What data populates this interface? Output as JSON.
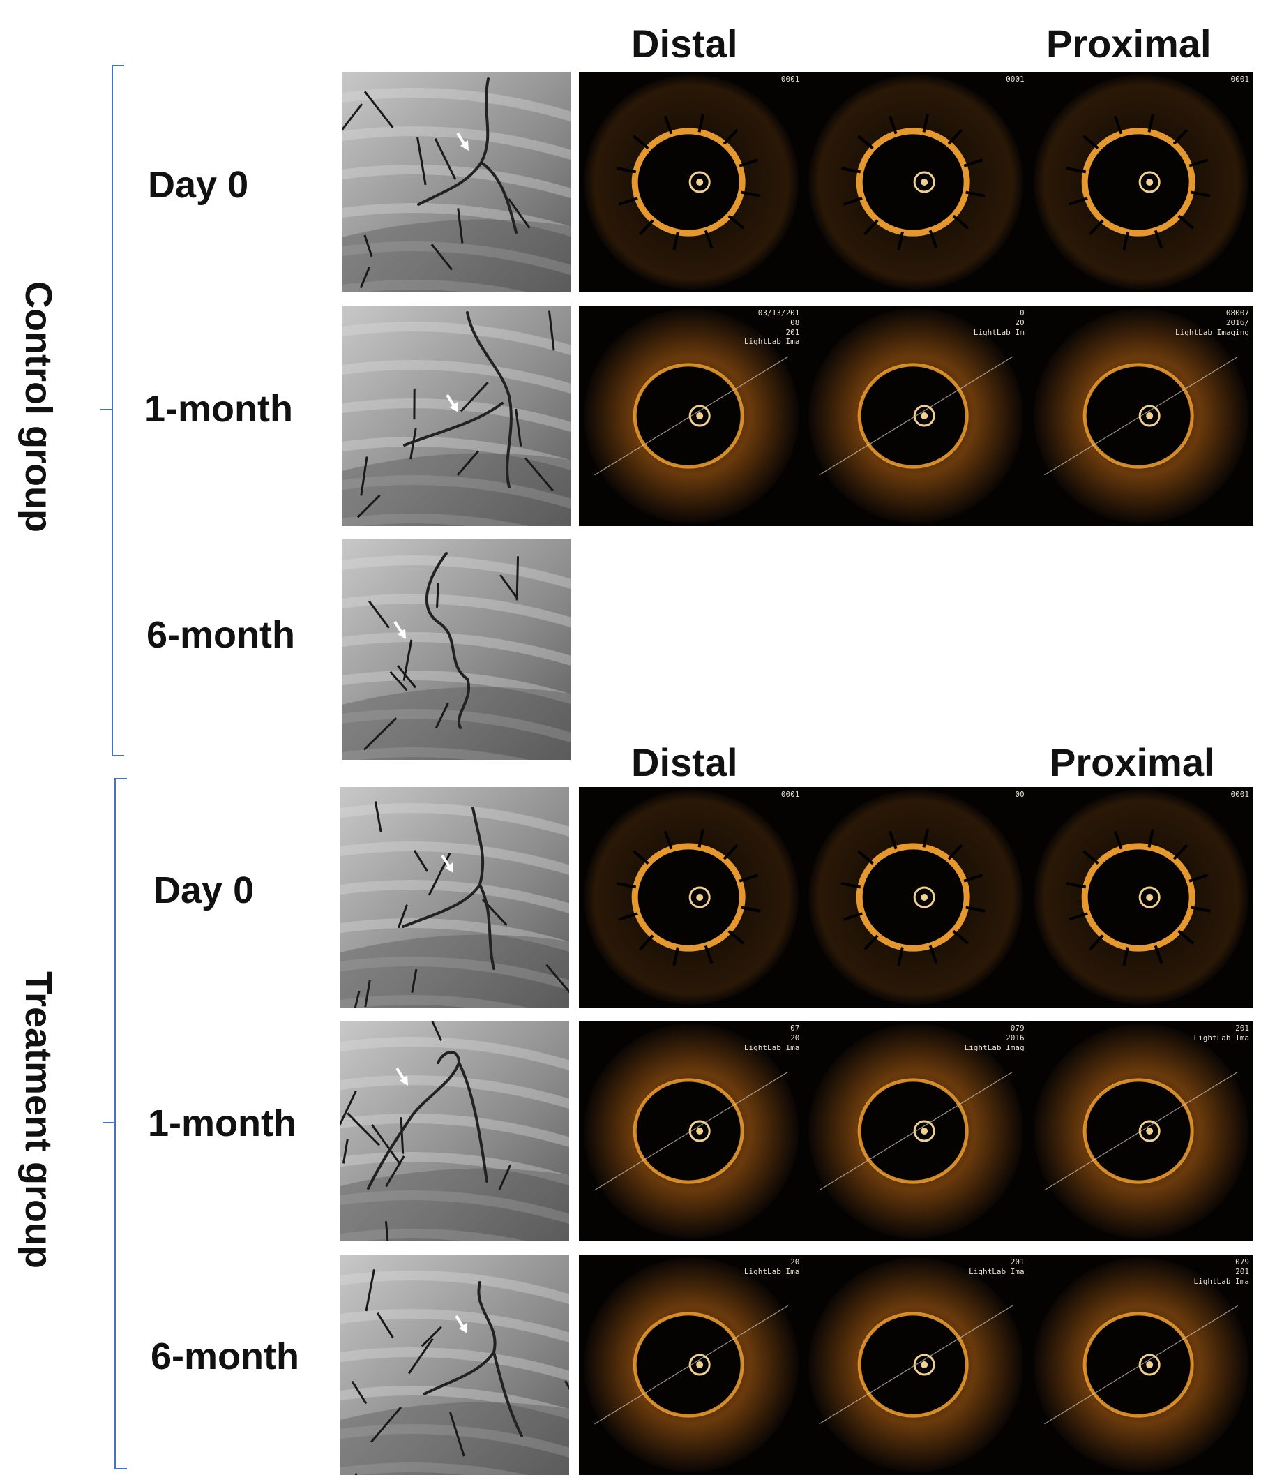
{
  "headers": {
    "control": {
      "distal": "Distal",
      "proximal": "Proximal"
    },
    "treatment": {
      "distal": "Distal",
      "proximal": "Proximal"
    }
  },
  "groups": {
    "control": {
      "label": "Control group",
      "rows": [
        {
          "label": "Day 0"
        },
        {
          "label": "1-month"
        },
        {
          "label": "6-month"
        }
      ]
    },
    "treatment": {
      "label": "Treatment  group",
      "rows": [
        {
          "label": "Day 0"
        },
        {
          "label": "1-month"
        },
        {
          "label": "6-month"
        }
      ]
    }
  },
  "oct_overlays": {
    "ctrl_day0": [
      "0001",
      "0001",
      "0001"
    ],
    "ctrl_m1": [
      "03/13/201\n08\n201\nLightLab Ima",
      "0\n20\nLightLab Im",
      "08007\n2016/\nLightLab Imaging"
    ],
    "treat_day0": [
      "0001",
      "00",
      "0001"
    ],
    "treat_m1": [
      "07\n20\nLightLab Ima",
      "079\n2016\nLightLab Imag",
      "201\nLightLab Ima"
    ],
    "treat_m6": [
      "20\nLightLab Ima",
      "201\nLightLab Ima",
      "079\n201\nLightLab Ima"
    ]
  },
  "colors": {
    "bracket": "#4472c4",
    "oct_ring": "#f0a030",
    "angio_bg": "#9a9a9a"
  }
}
